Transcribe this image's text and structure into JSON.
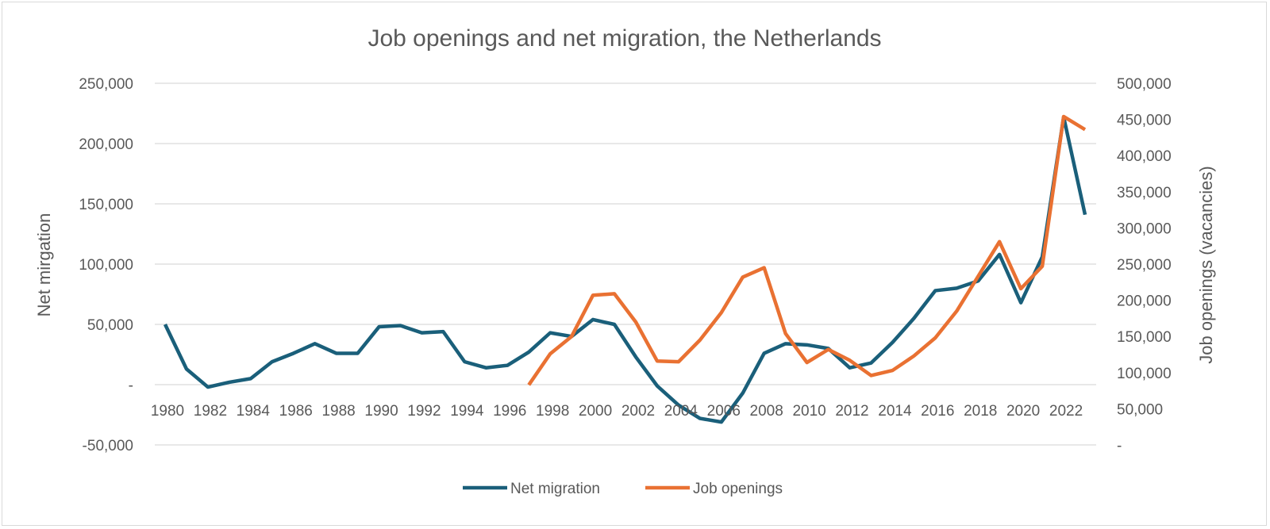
{
  "chart_data": {
    "type": "line",
    "title": "Job openings and net migration, the Netherlands",
    "ylabel_left": "Net mirgation",
    "ylabel_right": "Job openings (vacancies)",
    "xlabel": "",
    "y_left_ticks": [
      "250,000",
      "200,000",
      "150,000",
      "100,000",
      "50,000",
      "-",
      "-50,000"
    ],
    "y_left_lim": [
      -50000,
      250000
    ],
    "y_right_ticks": [
      "500,000",
      "450,000",
      "400,000",
      "350,000",
      "300,000",
      "250,000",
      "200,000",
      "150,000",
      "100,000",
      "50,000",
      "-"
    ],
    "y_right_lim": [
      0,
      500000
    ],
    "x_tick_labels": [
      "1980",
      "1982",
      "1984",
      "1986",
      "1988",
      "1990",
      "1992",
      "1994",
      "1996",
      "1998",
      "2000",
      "2002",
      "2004",
      "2006",
      "2008",
      "2010",
      "2012",
      "2014",
      "2016",
      "2018",
      "2020",
      "2022"
    ],
    "grid": true,
    "legend_position": "bottom",
    "x": [
      1980,
      1981,
      1982,
      1983,
      1984,
      1985,
      1986,
      1987,
      1988,
      1989,
      1990,
      1991,
      1992,
      1993,
      1994,
      1995,
      1996,
      1997,
      1998,
      1999,
      2000,
      2001,
      2002,
      2003,
      2004,
      2005,
      2006,
      2007,
      2008,
      2009,
      2010,
      2011,
      2012,
      2013,
      2014,
      2015,
      2016,
      2017,
      2018,
      2019,
      2020,
      2021,
      2022,
      2023
    ],
    "series": [
      {
        "name": "Net migration",
        "axis": "left",
        "color": "#1a5f7a",
        "values": [
          50000,
          13000,
          -2000,
          2000,
          5000,
          19000,
          26000,
          34000,
          26000,
          26000,
          48000,
          49000,
          43000,
          44000,
          19000,
          14000,
          16000,
          27000,
          43000,
          40000,
          54000,
          50000,
          23000,
          -1000,
          -17000,
          -28000,
          -31000,
          -7000,
          26000,
          34000,
          33000,
          30000,
          14000,
          18000,
          35000,
          55000,
          78000,
          80000,
          86000,
          108000,
          68000,
          106000,
          222000,
          141000
        ]
      },
      {
        "name": "Job openings",
        "axis": "right",
        "color": "#e97132",
        "values": [
          null,
          null,
          null,
          null,
          null,
          null,
          null,
          null,
          null,
          null,
          null,
          null,
          null,
          null,
          null,
          null,
          null,
          83000,
          126000,
          150000,
          207000,
          209000,
          170000,
          116000,
          115000,
          145000,
          183000,
          232000,
          245000,
          154000,
          114000,
          132000,
          117000,
          96000,
          103000,
          123000,
          148000,
          185000,
          233000,
          281000,
          216000,
          247000,
          454000,
          436000
        ]
      }
    ]
  }
}
